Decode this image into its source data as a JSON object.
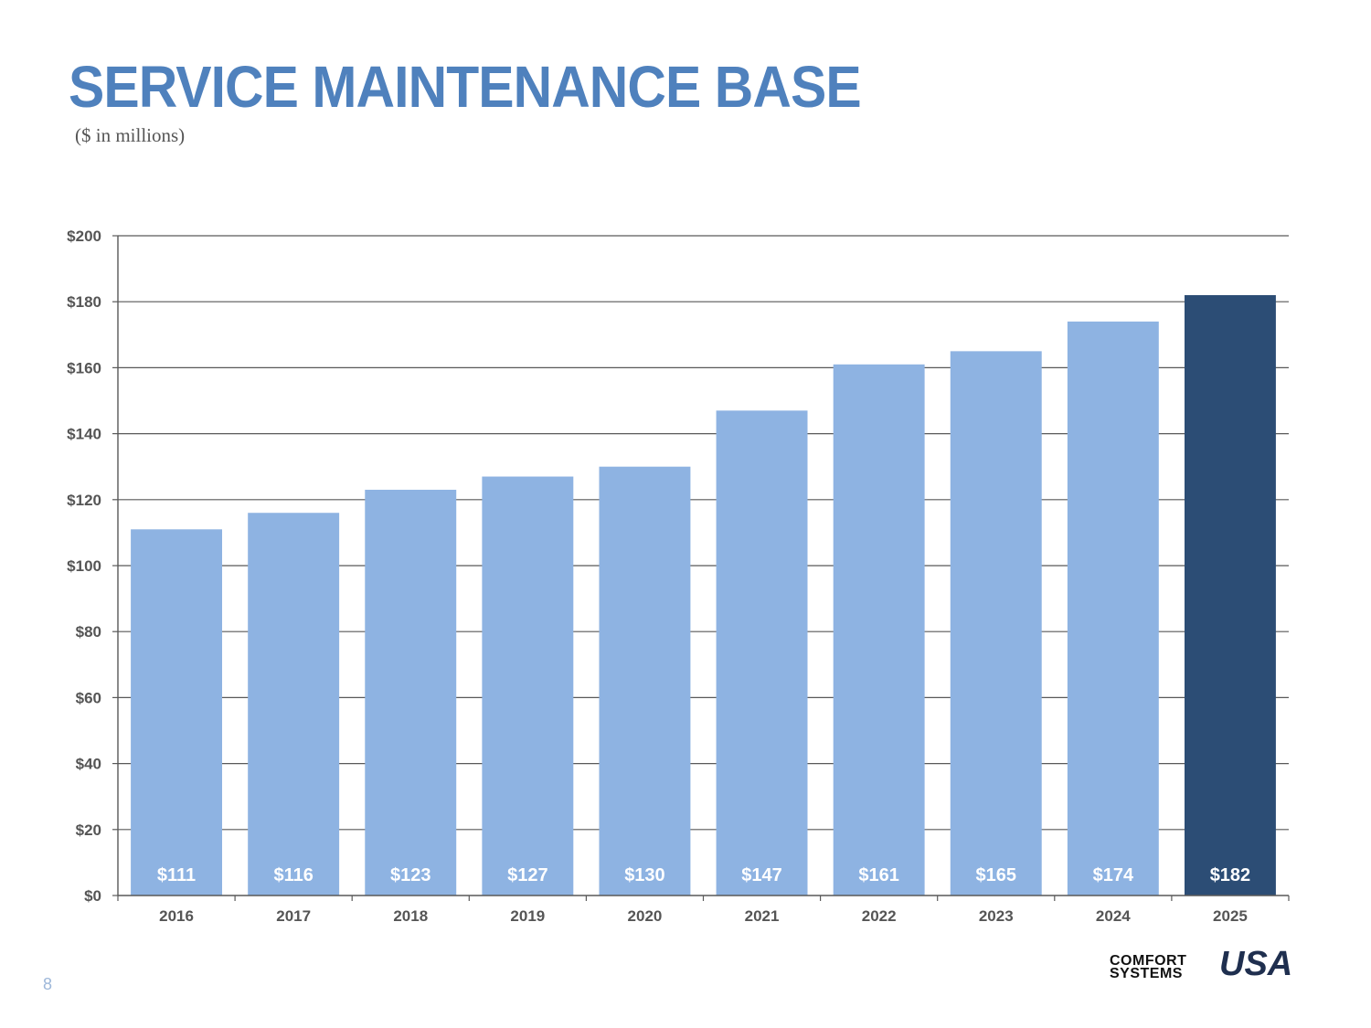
{
  "slide": {
    "title": "SERVICE MAINTENANCE BASE",
    "subtitle": "($ in millions)",
    "page_number": "8"
  },
  "logo": {
    "line1": "COMFORT",
    "line2": "SYSTEMS",
    "usa": "USA"
  },
  "chart_data": {
    "type": "bar",
    "title": "",
    "xlabel": "",
    "ylabel": "",
    "categories": [
      "2016",
      "2017",
      "2018",
      "2019",
      "2020",
      "2021",
      "2022",
      "2023",
      "2024",
      "2025"
    ],
    "values": [
      111,
      116,
      123,
      127,
      130,
      147,
      161,
      165,
      174,
      182
    ],
    "data_labels": [
      "$111",
      "$116",
      "$123",
      "$127",
      "$130",
      "$147",
      "$161",
      "$165",
      "$174",
      "$182"
    ],
    "ylim": [
      0,
      200
    ],
    "yticks": [
      0,
      20,
      40,
      60,
      80,
      100,
      120,
      140,
      160,
      180,
      200
    ],
    "ytick_labels": [
      "$0",
      "$20",
      "$40",
      "$60",
      "$80",
      "$100",
      "$120",
      "$140",
      "$160",
      "$180",
      "$200"
    ],
    "grid": true,
    "colors": {
      "bar": "#8eb3e2",
      "highlight_bar": "#2c4d75",
      "highlight_index": 9,
      "label_text": "#ffffff",
      "axis_text": "#555555",
      "grid": "#595959"
    }
  }
}
